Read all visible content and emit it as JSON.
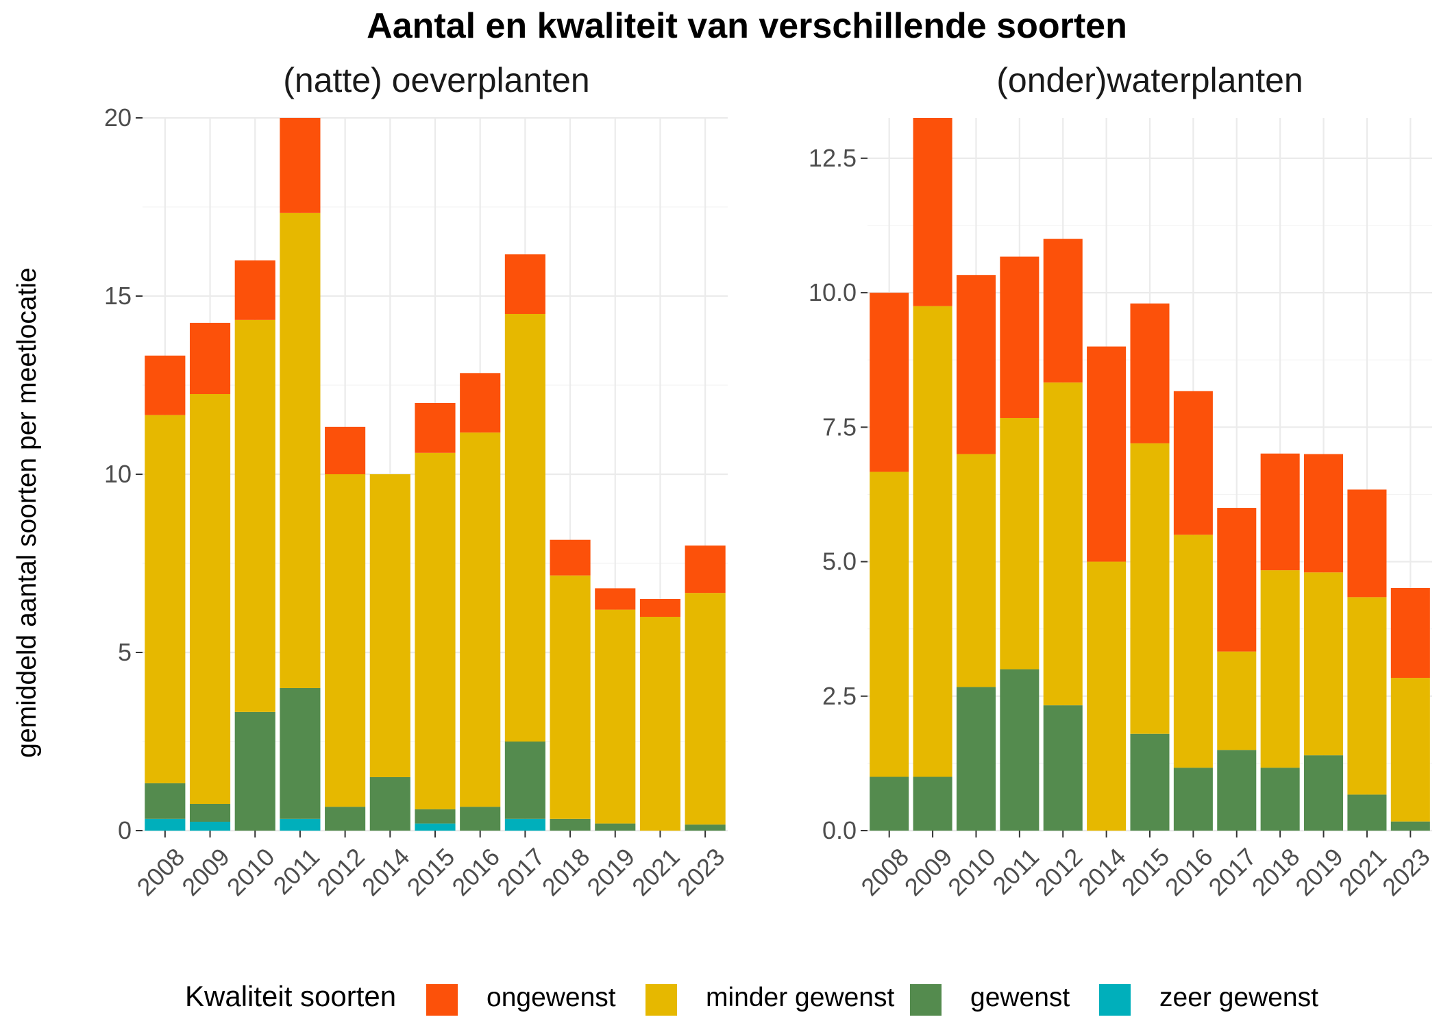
{
  "chart_data": {
    "type": "bar",
    "stacked": true,
    "title": "Aantal en kwaliteit van verschillende soorten",
    "ylabel": "gemiddeld aantal soorten per meetlocatie",
    "legend": {
      "title": "Kwaliteit soorten",
      "position": "bottom",
      "entries": [
        "ongewenst",
        "minder gewenst",
        "gewenst",
        "zeer gewenst"
      ],
      "colors": [
        "#FC510A",
        "#E6B800",
        "#548B4E",
        "#00AFBB"
      ]
    },
    "grid": true,
    "panels": [
      {
        "subtitle": "(natte) oeverplanten",
        "categories": [
          "2008",
          "2009",
          "2010",
          "2011",
          "2012",
          "2014",
          "2015",
          "2016",
          "2017",
          "2018",
          "2019",
          "2021",
          "2023"
        ],
        "ylim": [
          0,
          20
        ],
        "yticks": [
          0,
          5,
          10,
          15,
          20
        ],
        "yticklabels": [
          "0",
          "5",
          "10",
          "15",
          "20"
        ],
        "series": [
          {
            "name": "zeer gewenst",
            "values": [
              0.33,
              0.25,
              0,
              0.33,
              0,
              0,
              0.2,
              0,
              0.33,
              0,
              0,
              0,
              0
            ]
          },
          {
            "name": "gewenst",
            "values": [
              1.0,
              0.5,
              3.33,
              3.67,
              0.67,
              1.5,
              0.4,
              0.67,
              2.17,
              0.33,
              0.2,
              0,
              0.17
            ]
          },
          {
            "name": "minder gewenst",
            "values": [
              10.33,
              11.5,
              11.0,
              13.33,
              9.33,
              8.5,
              10.0,
              10.5,
              12.0,
              6.83,
              6.0,
              6.0,
              6.5
            ]
          },
          {
            "name": "ongewenst",
            "values": [
              1.67,
              2.0,
              1.67,
              2.67,
              1.33,
              0,
              1.4,
              1.67,
              1.67,
              1.0,
              0.6,
              0.5,
              1.33
            ]
          }
        ]
      },
      {
        "subtitle": "(onder)waterplanten",
        "categories": [
          "2008",
          "2009",
          "2010",
          "2011",
          "2012",
          "2014",
          "2015",
          "2016",
          "2017",
          "2018",
          "2019",
          "2021",
          "2023"
        ],
        "ylim": [
          0,
          13.25
        ],
        "yticks": [
          0,
          2.5,
          5,
          7.5,
          10,
          12.5
        ],
        "yticklabels": [
          "0.0",
          "2.5",
          "5.0",
          "7.5",
          "10.0",
          "12.5"
        ],
        "series": [
          {
            "name": "zeer gewenst",
            "values": [
              0,
              0,
              0,
              0,
              0,
              0,
              0,
              0,
              0,
              0,
              0,
              0,
              0
            ]
          },
          {
            "name": "gewenst",
            "values": [
              1.0,
              1.0,
              2.67,
              3.0,
              2.33,
              0,
              1.8,
              1.17,
              1.5,
              1.17,
              1.4,
              0.67,
              0.17
            ]
          },
          {
            "name": "minder gewenst",
            "values": [
              5.67,
              8.75,
              4.33,
              4.67,
              6.0,
              5.0,
              5.4,
              4.33,
              1.83,
              3.67,
              3.4,
              3.67,
              2.67
            ]
          },
          {
            "name": "ongewenst",
            "values": [
              3.33,
              3.5,
              3.33,
              3.0,
              2.67,
              4.0,
              2.6,
              2.67,
              2.67,
              2.17,
              2.2,
              2.0,
              1.67
            ]
          }
        ]
      }
    ]
  }
}
